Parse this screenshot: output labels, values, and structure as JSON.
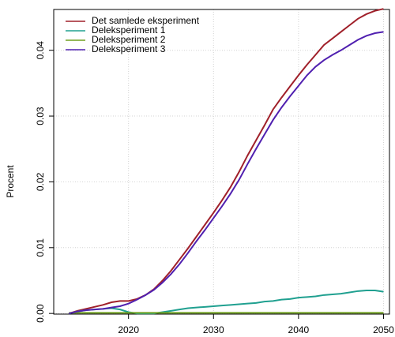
{
  "chart_data": {
    "type": "line",
    "y_label": "Procent",
    "x": [
      2013,
      2014,
      2015,
      2016,
      2017,
      2018,
      2019,
      2020,
      2021,
      2022,
      2023,
      2024,
      2025,
      2026,
      2027,
      2028,
      2029,
      2030,
      2031,
      2032,
      2033,
      2034,
      2035,
      2036,
      2037,
      2038,
      2039,
      2040,
      2041,
      2042,
      2043,
      2044,
      2045,
      2046,
      2047,
      2048,
      2049,
      2050
    ],
    "series": [
      {
        "name": "Det samlede eksperiment",
        "color": "#a0202a",
        "values": [
          0,
          0.0004,
          0.0007,
          0.001,
          0.0013,
          0.0017,
          0.0019,
          0.0019,
          0.0022,
          0.0028,
          0.0037,
          0.005,
          0.0065,
          0.0082,
          0.0099,
          0.0117,
          0.0135,
          0.0153,
          0.0172,
          0.0192,
          0.0215,
          0.024,
          0.0263,
          0.0286,
          0.031,
          0.0328,
          0.0345,
          0.0362,
          0.0378,
          0.0393,
          0.0408,
          0.0418,
          0.0428,
          0.0438,
          0.0448,
          0.0455,
          0.046,
          0.0463
        ]
      },
      {
        "name": "Deleksperiment 1",
        "color": "#20a090",
        "values": [
          0,
          0.0003,
          0.0005,
          0.0006,
          0.0007,
          0.0008,
          0.0006,
          0.0002,
          0,
          0,
          0,
          0.0002,
          0.0004,
          0.0006,
          0.0008,
          0.0009,
          0.001,
          0.0011,
          0.0012,
          0.0013,
          0.0014,
          0.0015,
          0.0016,
          0.0018,
          0.0019,
          0.0021,
          0.0022,
          0.0024,
          0.0025,
          0.0026,
          0.0028,
          0.0029,
          0.003,
          0.0032,
          0.0034,
          0.0035,
          0.0035,
          0.0033
        ]
      },
      {
        "name": "Deleksperiment 2",
        "color": "#70a020",
        "values": [
          0.0001,
          0.0001,
          0.0001,
          0.0001,
          0.0001,
          0.0001,
          0.0001,
          0.0001,
          0.0001,
          0.0001,
          0.0001,
          0.0001,
          0.0001,
          0.0001,
          0.0001,
          0.0001,
          0.0001,
          0.0001,
          0.0001,
          0.0001,
          0.0001,
          0.0001,
          0.0001,
          0.0001,
          0.0001,
          0.0001,
          0.0001,
          0.0001,
          0.0001,
          0.0001,
          0.0001,
          0.0001,
          0.0001,
          0.0001,
          0.0001,
          0.0001,
          0.0001,
          0.0001
        ]
      },
      {
        "name": "Deleksperiment 3",
        "color": "#5020b0",
        "values": [
          0,
          0.0003,
          0.0005,
          0.0006,
          0.0007,
          0.0009,
          0.0011,
          0.0015,
          0.0021,
          0.0028,
          0.0036,
          0.0047,
          0.006,
          0.0075,
          0.0092,
          0.011,
          0.0127,
          0.0145,
          0.0163,
          0.0182,
          0.0203,
          0.0227,
          0.025,
          0.0272,
          0.0294,
          0.0313,
          0.033,
          0.0346,
          0.0362,
          0.0375,
          0.0385,
          0.0393,
          0.04,
          0.0408,
          0.0416,
          0.0422,
          0.0426,
          0.0428
        ]
      }
    ],
    "xlim": [
      2011.2,
      2050.7
    ],
    "xticks": [
      2020,
      2030,
      2040,
      2050
    ],
    "ylim": [
      -0.0001,
      0.0462
    ],
    "yticks": [
      {
        "value": 0,
        "label": "0.00"
      },
      0.01,
      0.02,
      0.03,
      0.04
    ],
    "grid": true,
    "legend": "top-left"
  }
}
